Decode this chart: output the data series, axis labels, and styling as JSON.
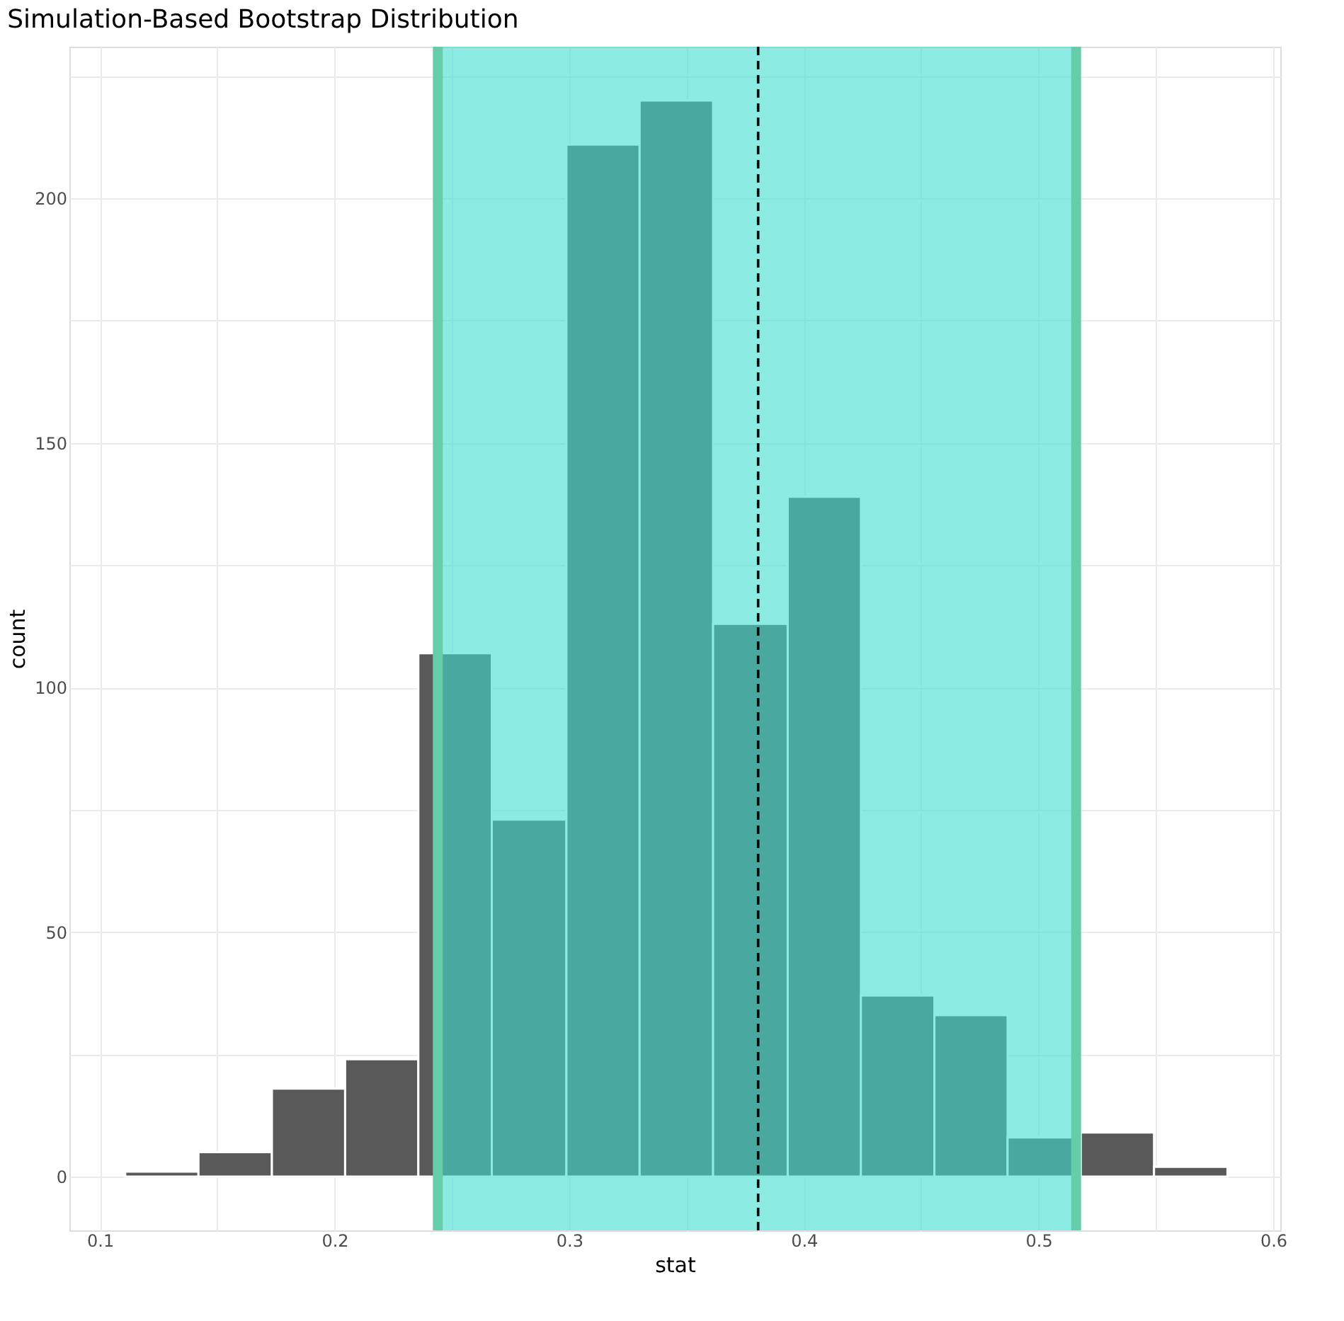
{
  "chart_data": {
    "type": "histogram",
    "title": "Simulation-Based Bootstrap Distribution",
    "xlabel": "stat",
    "ylabel": "count",
    "bins": [
      0.1108,
      0.142,
      0.1733,
      0.2045,
      0.2357,
      0.267,
      0.2988,
      0.33,
      0.3613,
      0.3931,
      0.4243,
      0.4556,
      0.4868,
      0.518,
      0.5492,
      0.5805
    ],
    "values": [
      1,
      5,
      18,
      24,
      107,
      73,
      211,
      220,
      113,
      139,
      37,
      33,
      8,
      9,
      2
    ],
    "color": "#595959",
    "xlim": [
      0.087,
      0.603
    ],
    "xticks": [
      0.1,
      {
        "value": 0.15,
        "label": null
      },
      0.2,
      {
        "value": 0.25,
        "label": null
      },
      0.3,
      {
        "value": 0.35,
        "label": null
      },
      0.4,
      {
        "value": 0.45,
        "label": null
      },
      0.5,
      {
        "value": 0.55,
        "label": null
      },
      0.6
    ],
    "ylim": [
      -11,
      231
    ],
    "yticks": [
      0,
      {
        "value": 25,
        "label": null
      },
      50,
      {
        "value": 75,
        "label": null
      },
      100,
      {
        "value": 125,
        "label": null
      },
      150,
      {
        "value": 175,
        "label": null
      },
      200,
      {
        "value": 225,
        "label": null
      }
    ],
    "grid": true,
    "bands": [
      {
        "axis": "x",
        "from": 0.244,
        "to": 0.516,
        "color": "#3fded0"
      }
    ],
    "ref_lines": [
      {
        "axis": "x",
        "value": 0.3805,
        "line_style": "dashed",
        "color": "#000000"
      },
      {
        "axis": "x",
        "value": 0.244,
        "line_style": "solid",
        "color": "#66cdaa"
      },
      {
        "axis": "x",
        "value": 0.516,
        "line_style": "solid",
        "color": "#66cdaa"
      }
    ]
  }
}
